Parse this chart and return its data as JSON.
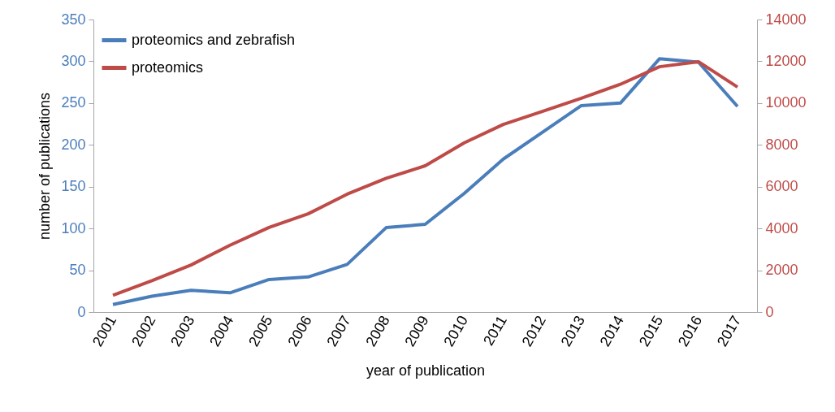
{
  "chart_data": {
    "type": "line",
    "xlabel": "year of publication",
    "ylabel": "number of publications",
    "categories": [
      "2001",
      "2002",
      "2003",
      "2004",
      "2005",
      "2006",
      "2007",
      "2008",
      "2009",
      "2010",
      "2011",
      "2012",
      "2013",
      "2014",
      "2015",
      "2016",
      "2017"
    ],
    "ylim": [
      0,
      350
    ],
    "yticks": [
      0,
      50,
      100,
      150,
      200,
      250,
      300,
      350
    ],
    "y2lim": [
      0,
      14000
    ],
    "y2ticks": [
      0,
      2000,
      4000,
      6000,
      8000,
      10000,
      12000,
      14000
    ],
    "series": [
      {
        "name": "proteomics and zebrafish",
        "color": "#4a7ebb",
        "values": [
          9,
          19,
          26,
          23,
          39,
          42,
          57,
          101,
          105,
          142,
          183,
          215,
          247,
          250,
          303,
          299,
          246
        ]
      },
      {
        "name": "proteomics",
        "color": "#be4b48",
        "axis": "y2",
        "values": [
          800,
          1500,
          2250,
          3200,
          4050,
          4700,
          5640,
          6400,
          7000,
          8100,
          8980,
          9600,
          10230,
          10900,
          11740,
          11980,
          10770
        ]
      }
    ],
    "grid": false,
    "legend": "top left"
  }
}
